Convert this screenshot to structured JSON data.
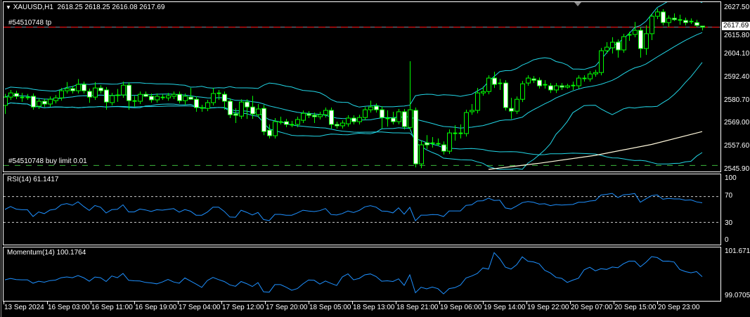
{
  "header": {
    "symbol": "XAUUSD,H1",
    "ohlc": "2618.25 2618.25 2616.08 2617.69"
  },
  "orders": {
    "tp_label": "#54510748 tp",
    "tp_price": 2617.69,
    "buy_limit_label": "#54510748 buy limit 0.01",
    "buy_limit_price": 2547.9
  },
  "price_axis": [
    "2627.50",
    "2615.80",
    "2604.10",
    "2592.40",
    "2580.70",
    "2569.00",
    "2557.60",
    "2545.90"
  ],
  "price_range": [
    2545.9,
    2627.5
  ],
  "current_price_tag": "2617.69",
  "rsi": {
    "label": "RSI(14) 61.1417",
    "axis": [
      "100",
      "70",
      "30",
      "0"
    ],
    "levels": [
      70,
      30
    ]
  },
  "momentum": {
    "label": "Momentum(14) 100.1764",
    "axis": [
      "101.6718",
      "99.0705"
    ],
    "range": [
      99.0705,
      101.6718
    ]
  },
  "time_axis": [
    "13 Sep 2024",
    "16 Sep 03:00",
    "16 Sep 11:00",
    "16 Sep 19:00",
    "17 Sep 04:00",
    "17 Sep 12:00",
    "17 Sep 20:00",
    "18 Sep 05:00",
    "18 Sep 13:00",
    "18 Sep 21:00",
    "19 Sep 06:00",
    "19 Sep 14:00",
    "19 Sep 22:00",
    "20 Sep 07:00",
    "20 Sep 15:00",
    "20 Sep 23:00"
  ],
  "colors": {
    "bull": "#00ff00",
    "bear_fill": "#ffffff",
    "bands": "#22d6e6",
    "indicator": "#1e90ff",
    "ma": "#fff8dc",
    "tp_line": "#ff0000",
    "buy_limit_line": "#3cb83c"
  },
  "candles_ohlc": [
    [
      2578.2,
      2584.0,
      2573.9,
      2582.4
    ],
    [
      2582.4,
      2586.0,
      2581.0,
      2584.5
    ],
    [
      2584.2,
      2585.6,
      2581.4,
      2582.8
    ],
    [
      2582.4,
      2584.5,
      2580.0,
      2582.4
    ],
    [
      2582.4,
      2584.0,
      2581.0,
      2582.4
    ],
    [
      2582.8,
      2584.2,
      2576.0,
      2577.4
    ],
    [
      2577.8,
      2581.7,
      2576.4,
      2580.3
    ],
    [
      2580.3,
      2581.7,
      2577.5,
      2578.9
    ],
    [
      2578.9,
      2582.7,
      2577.5,
      2581.3
    ],
    [
      2580.6,
      2583.4,
      2579.2,
      2582.0
    ],
    [
      2582.0,
      2587.0,
      2580.6,
      2585.6
    ],
    [
      2585.6,
      2590.0,
      2584.2,
      2586.7
    ],
    [
      2586.7,
      2588.1,
      2584.2,
      2585.6
    ],
    [
      2585.6,
      2591.5,
      2584.2,
      2588.8
    ],
    [
      2588.8,
      2590.2,
      2584.2,
      2585.6
    ],
    [
      2585.3,
      2586.7,
      2579.5,
      2582.4
    ],
    [
      2582.4,
      2590.0,
      2581.0,
      2587.0
    ],
    [
      2587.0,
      2588.4,
      2584.2,
      2585.6
    ],
    [
      2586.0,
      2587.4,
      2576.0,
      2579.9
    ],
    [
      2579.6,
      2584.5,
      2578.2,
      2583.1
    ],
    [
      2583.5,
      2586.5,
      2580.0,
      2583.5
    ],
    [
      2583.5,
      2590.2,
      2582.1,
      2588.4
    ],
    [
      2588.4,
      2589.8,
      2576.0,
      2580.6
    ],
    [
      2580.6,
      2583.0,
      2577.5,
      2580.6
    ],
    [
      2580.3,
      2585.2,
      2578.9,
      2583.8
    ],
    [
      2583.8,
      2585.2,
      2582.4,
      2582.8
    ],
    [
      2582.8,
      2584.2,
      2579.6,
      2581.0
    ],
    [
      2581.0,
      2584.2,
      2579.6,
      2582.8
    ],
    [
      2582.4,
      2583.8,
      2581.0,
      2582.4
    ],
    [
      2582.0,
      2584.5,
      2580.6,
      2583.1
    ],
    [
      2582.8,
      2585.2,
      2581.4,
      2583.8
    ],
    [
      2583.8,
      2585.2,
      2579.2,
      2580.6
    ],
    [
      2580.6,
      2584.2,
      2578.5,
      2582.8
    ],
    [
      2582.4,
      2587.0,
      2581.0,
      2581.3
    ],
    [
      2581.3,
      2582.7,
      2575.0,
      2577.1
    ],
    [
      2577.1,
      2578.5,
      2575.0,
      2577.1
    ],
    [
      2576.7,
      2581.0,
      2575.3,
      2579.6
    ],
    [
      2579.6,
      2587.0,
      2578.2,
      2584.2
    ],
    [
      2584.5,
      2586.0,
      2581.0,
      2584.2
    ],
    [
      2583.8,
      2585.2,
      2576.0,
      2580.3
    ],
    [
      2580.3,
      2581.7,
      2571.8,
      2573.5
    ],
    [
      2573.9,
      2576.7,
      2569.3,
      2573.2
    ],
    [
      2572.8,
      2581.3,
      2571.4,
      2579.9
    ],
    [
      2579.9,
      2581.3,
      2571.4,
      2577.4
    ],
    [
      2577.4,
      2583.0,
      2571.4,
      2573.9
    ],
    [
      2573.5,
      2578.9,
      2572.1,
      2576.4
    ],
    [
      2576.7,
      2578.5,
      2563.2,
      2565.0
    ],
    [
      2565.7,
      2568.6,
      2561.5,
      2562.9
    ],
    [
      2562.9,
      2571.8,
      2561.5,
      2570.0
    ],
    [
      2570.0,
      2572.5,
      2568.6,
      2570.0
    ],
    [
      2570.0,
      2571.4,
      2567.2,
      2568.6
    ],
    [
      2568.6,
      2570.4,
      2567.2,
      2568.6
    ],
    [
      2568.6,
      2572.5,
      2567.2,
      2571.1
    ],
    [
      2570.7,
      2575.6,
      2569.3,
      2574.2
    ],
    [
      2573.9,
      2575.3,
      2571.8,
      2573.2
    ],
    [
      2573.2,
      2574.6,
      2569.3,
      2572.5
    ],
    [
      2572.5,
      2575.0,
      2571.1,
      2573.5
    ],
    [
      2573.5,
      2577.1,
      2572.1,
      2575.7
    ],
    [
      2575.7,
      2577.1,
      2566.5,
      2568.6
    ],
    [
      2568.6,
      2570.0,
      2566.5,
      2567.9
    ],
    [
      2567.9,
      2570.7,
      2566.5,
      2569.3
    ],
    [
      2568.9,
      2573.2,
      2567.5,
      2571.8
    ],
    [
      2571.8,
      2573.2,
      2568.6,
      2570.0
    ],
    [
      2570.0,
      2573.5,
      2568.6,
      2572.1
    ],
    [
      2572.1,
      2577.4,
      2570.7,
      2576.0
    ],
    [
      2576.0,
      2580.6,
      2574.6,
      2577.4
    ],
    [
      2577.8,
      2579.2,
      2574.6,
      2576.0
    ],
    [
      2576.0,
      2577.8,
      2566.5,
      2572.1
    ],
    [
      2571.8,
      2575.7,
      2567.5,
      2571.8
    ],
    [
      2571.8,
      2575.0,
      2568.6,
      2570.0
    ],
    [
      2570.0,
      2576.4,
      2568.6,
      2575.0
    ],
    [
      2575.0,
      2576.4,
      2566.1,
      2567.5
    ],
    [
      2567.1,
      2600.5,
      2565.7,
      2576.0
    ],
    [
      2575.7,
      2577.1,
      2546.9,
      2548.7
    ],
    [
      2548.7,
      2560.4,
      2546.5,
      2558.3
    ],
    [
      2559.3,
      2563.2,
      2556.2,
      2558.3
    ],
    [
      2559.3,
      2562.2,
      2556.9,
      2559.3
    ],
    [
      2559.0,
      2561.5,
      2557.6,
      2559.0
    ],
    [
      2558.3,
      2560.0,
      2553.4,
      2555.1
    ],
    [
      2555.1,
      2566.1,
      2553.7,
      2564.3
    ],
    [
      2564.3,
      2568.2,
      2560.4,
      2564.3
    ],
    [
      2564.3,
      2568.6,
      2561.5,
      2564.3
    ],
    [
      2564.0,
      2576.0,
      2562.5,
      2574.6
    ],
    [
      2575.0,
      2578.9,
      2573.5,
      2575.7
    ],
    [
      2575.7,
      2587.0,
      2574.2,
      2584.5
    ],
    [
      2584.5,
      2587.7,
      2583.1,
      2585.2
    ],
    [
      2585.2,
      2593.4,
      2583.8,
      2592.0
    ],
    [
      2592.0,
      2595.2,
      2587.0,
      2588.8
    ],
    [
      2589.5,
      2591.6,
      2586.0,
      2589.5
    ],
    [
      2589.5,
      2590.9,
      2575.6,
      2577.1
    ],
    [
      2576.7,
      2582.0,
      2571.4,
      2575.3
    ],
    [
      2575.3,
      2582.7,
      2573.9,
      2581.3
    ],
    [
      2581.3,
      2590.5,
      2579.9,
      2589.1
    ],
    [
      2589.5,
      2593.4,
      2588.1,
      2592.0
    ],
    [
      2591.6,
      2593.0,
      2589.5,
      2590.9
    ],
    [
      2590.9,
      2592.3,
      2586.7,
      2588.1
    ],
    [
      2588.8,
      2590.9,
      2586.7,
      2588.8
    ],
    [
      2588.1,
      2589.5,
      2584.5,
      2586.0
    ],
    [
      2586.0,
      2589.5,
      2584.5,
      2588.1
    ],
    [
      2588.1,
      2589.5,
      2586.0,
      2587.4
    ],
    [
      2587.4,
      2589.1,
      2586.7,
      2588.1
    ],
    [
      2588.4,
      2590.2,
      2586.0,
      2588.4
    ],
    [
      2588.1,
      2593.4,
      2586.7,
      2592.0
    ],
    [
      2592.0,
      2593.4,
      2590.2,
      2592.0
    ],
    [
      2591.6,
      2595.5,
      2590.2,
      2594.1
    ],
    [
      2594.1,
      2596.2,
      2592.7,
      2594.8
    ],
    [
      2594.8,
      2607.2,
      2593.4,
      2605.8
    ],
    [
      2605.8,
      2610.1,
      2604.4,
      2607.6
    ],
    [
      2607.3,
      2612.6,
      2604.4,
      2610.1
    ],
    [
      2610.1,
      2611.5,
      2602.3,
      2606.2
    ],
    [
      2606.2,
      2614.3,
      2604.8,
      2612.9
    ],
    [
      2614.0,
      2615.4,
      2610.8,
      2614.0
    ],
    [
      2614.0,
      2620.3,
      2612.6,
      2616.1
    ],
    [
      2616.1,
      2617.5,
      2602.3,
      2606.9
    ],
    [
      2606.9,
      2618.6,
      2603.7,
      2614.4
    ],
    [
      2614.4,
      2624.6,
      2611.2,
      2623.2
    ],
    [
      2623.2,
      2627.1,
      2621.8,
      2625.4
    ],
    [
      2625.4,
      2626.8,
      2618.6,
      2620.0
    ],
    [
      2620.0,
      2623.6,
      2617.9,
      2622.2
    ],
    [
      2622.2,
      2624.6,
      2620.8,
      2621.5
    ],
    [
      2621.5,
      2624.0,
      2618.9,
      2621.5
    ],
    [
      2621.1,
      2622.5,
      2618.6,
      2620.0
    ],
    [
      2620.7,
      2622.1,
      2619.3,
      2620.7
    ],
    [
      2620.0,
      2621.4,
      2617.9,
      2618.6
    ],
    [
      2618.25,
      2618.25,
      2616.08,
      2617.69
    ]
  ],
  "slow_ma_points": [
    [
      86,
      2545.9
    ],
    [
      95,
      2549.0
    ],
    [
      105,
      2553.0
    ],
    [
      115,
      2558.5
    ],
    [
      124,
      2565.0
    ]
  ]
}
